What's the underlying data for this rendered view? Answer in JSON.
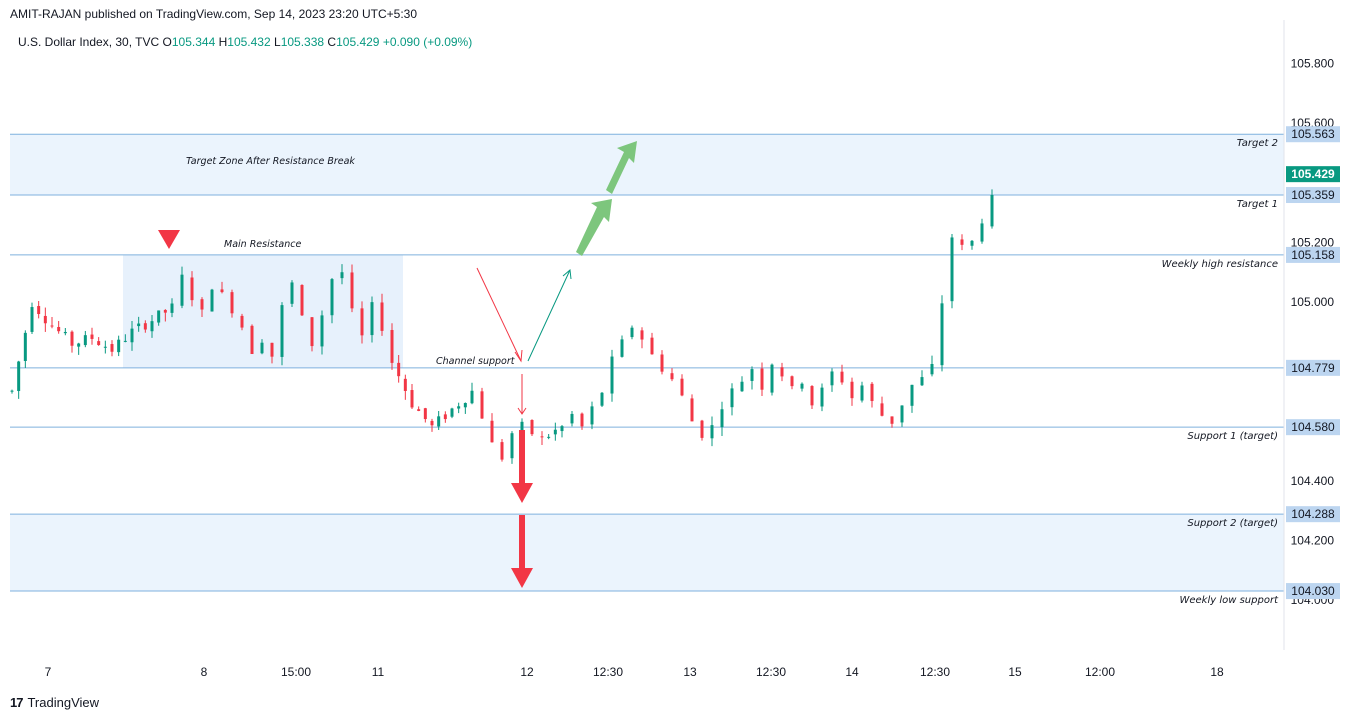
{
  "header": {
    "publisher": "AMIT-RAJAN published on TradingView.com, Sep 14, 2023 23:20 UTC+5:30"
  },
  "legend": {
    "symbol": "U.S. Dollar Index, 30, TVC",
    "o_label": "O",
    "o_value": "105.344",
    "h_label": "H",
    "h_value": "105.432",
    "l_label": "L",
    "l_value": "105.338",
    "c_label": "C",
    "c_value": "105.429",
    "change": "+0.090 (+0.09%)"
  },
  "footer": {
    "brand": "TradingView",
    "logo": "17"
  },
  "colors": {
    "up": "#089981",
    "down": "#f23645",
    "level": "#7fb1de",
    "zone": "#e3effc",
    "green_arrow": "#7dc67d",
    "red_arrow": "#f23645"
  },
  "chart_data": {
    "type": "candlestick",
    "ylim": [
      103.85,
      105.95
    ],
    "y_ticks": [
      "105.800",
      "105.600",
      "105.200",
      "105.000",
      "104.400",
      "104.200",
      "104.000"
    ],
    "x_ticks": [
      "7",
      "8",
      "15:00",
      "11",
      "12",
      "12:30",
      "13",
      "12:30",
      "14",
      "12:30",
      "15",
      "12:00",
      "18"
    ],
    "last_price": {
      "value": 105.429,
      "label": "105.429"
    },
    "levels": [
      {
        "value": 105.563,
        "price_label": "105.563",
        "text": "Target 2"
      },
      {
        "value": 105.359,
        "price_label": "105.359",
        "text": "Target 1"
      },
      {
        "value": 105.158,
        "price_label": "105.158",
        "text": "Weekly high resistance"
      },
      {
        "value": 104.779,
        "price_label": "104.779",
        "text": ""
      },
      {
        "value": 104.58,
        "price_label": "104.580",
        "text": "Support 1 (target)"
      },
      {
        "value": 104.288,
        "price_label": "104.288",
        "text": "Support 2 (target)"
      },
      {
        "value": 104.03,
        "price_label": "104.030",
        "text": "Weekly low support"
      }
    ],
    "zones": [
      {
        "from": 105.359,
        "to": 105.563,
        "text": "Target Zone After Resistance Break"
      },
      {
        "from": 104.03,
        "to": 104.288,
        "text": ""
      },
      {
        "from": 104.779,
        "to": 105.158,
        "text": "Main Resistance",
        "partial": true
      }
    ],
    "annotations": [
      "Channel support"
    ],
    "price_path": [
      [
        0,
        104.7
      ],
      [
        2,
        105.0
      ],
      [
        4,
        104.92
      ],
      [
        6,
        104.86
      ],
      [
        8,
        104.88
      ],
      [
        10,
        104.84
      ],
      [
        12,
        104.9
      ],
      [
        14,
        104.94
      ],
      [
        16,
        104.98
      ],
      [
        17,
        105.08
      ],
      [
        18,
        105.02
      ],
      [
        19,
        104.96
      ],
      [
        20,
        105.06
      ],
      [
        21,
        105.02
      ],
      [
        22,
        104.98
      ],
      [
        23,
        104.92
      ],
      [
        24,
        104.84
      ],
      [
        25,
        104.88
      ],
      [
        26,
        104.82
      ],
      [
        27,
        104.98
      ],
      [
        28,
        105.06
      ],
      [
        29,
        104.94
      ],
      [
        30,
        104.86
      ],
      [
        31,
        104.96
      ],
      [
        32,
        105.08
      ],
      [
        33,
        105.1
      ],
      [
        34,
        104.96
      ],
      [
        35,
        104.88
      ],
      [
        36,
        104.98
      ],
      [
        37,
        104.92
      ],
      [
        38,
        104.8
      ],
      [
        40,
        104.66
      ],
      [
        42,
        104.58
      ],
      [
        44,
        104.64
      ],
      [
        46,
        104.7
      ],
      [
        47,
        104.62
      ],
      [
        48,
        104.52
      ],
      [
        49,
        104.48
      ],
      [
        50,
        104.56
      ],
      [
        51,
        104.58
      ],
      [
        52,
        104.56
      ],
      [
        53,
        104.54
      ],
      [
        55,
        104.58
      ],
      [
        56,
        104.62
      ],
      [
        57,
        104.58
      ],
      [
        58,
        104.64
      ],
      [
        59,
        104.7
      ],
      [
        60,
        104.8
      ],
      [
        61,
        104.86
      ],
      [
        62,
        104.92
      ],
      [
        63,
        104.88
      ],
      [
        64,
        104.82
      ],
      [
        65,
        104.78
      ],
      [
        66,
        104.74
      ],
      [
        67,
        104.68
      ],
      [
        68,
        104.6
      ],
      [
        69,
        104.56
      ],
      [
        70,
        104.58
      ],
      [
        71,
        104.66
      ],
      [
        72,
        104.7
      ],
      [
        73,
        104.74
      ],
      [
        74,
        104.78
      ],
      [
        75,
        104.72
      ],
      [
        76,
        104.8
      ],
      [
        77,
        104.76
      ],
      [
        78,
        104.7
      ],
      [
        79,
        104.74
      ],
      [
        80,
        104.66
      ],
      [
        81,
        104.7
      ],
      [
        82,
        104.76
      ],
      [
        83,
        104.74
      ],
      [
        84,
        104.68
      ],
      [
        85,
        104.72
      ],
      [
        86,
        104.66
      ],
      [
        87,
        104.62
      ],
      [
        88,
        104.6
      ],
      [
        89,
        104.66
      ],
      [
        90,
        104.72
      ],
      [
        91,
        104.74
      ],
      [
        92,
        104.78
      ],
      [
        93,
        105.0
      ],
      [
        94,
        105.22
      ],
      [
        95,
        105.18
      ],
      [
        96,
        105.2
      ],
      [
        97,
        105.28
      ],
      [
        98,
        105.34
      ],
      [
        99,
        105.43
      ]
    ]
  }
}
